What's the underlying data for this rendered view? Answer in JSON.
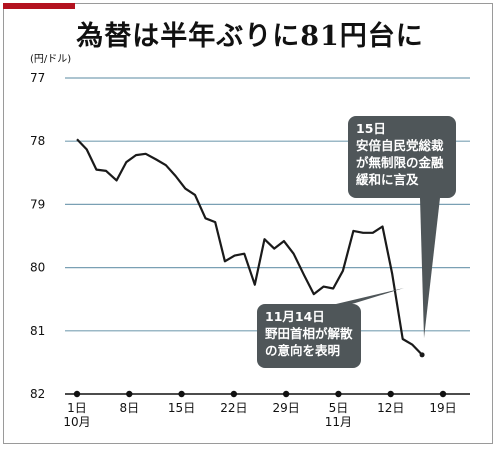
{
  "title": "為替は半年ぶりに81円台に",
  "colors": {
    "accent": "#b3121f",
    "line": "#1a1a1a",
    "grid": "#7aa0b4",
    "callout": "#4f5659"
  },
  "chart_data": {
    "type": "line",
    "title": "為替は半年ぶりに81円台に",
    "ylabel": "(円/ドル)",
    "xlabel": "",
    "y_inverted": true,
    "ylim": [
      77,
      82
    ],
    "yticks": [
      77,
      78,
      79,
      80,
      81,
      82
    ],
    "grid": true,
    "x_tick_labels": [
      {
        "day": 1,
        "label": "1日",
        "month_label": "10月"
      },
      {
        "day": 8,
        "label": "8日",
        "month_label": ""
      },
      {
        "day": 15,
        "label": "15日",
        "month_label": ""
      },
      {
        "day": 22,
        "label": "22日",
        "month_label": ""
      },
      {
        "day": 29,
        "label": "29日",
        "month_label": ""
      },
      {
        "day": 36,
        "label": "5日",
        "month_label": "11月"
      },
      {
        "day": 43,
        "label": "12日",
        "month_label": ""
      },
      {
        "day": 50,
        "label": "19日",
        "month_label": ""
      }
    ],
    "xlim": [
      0,
      52
    ],
    "series": [
      {
        "x": [
          1,
          2,
          3,
          4,
          5,
          6,
          7,
          8,
          9,
          10,
          11,
          12,
          13,
          14,
          15,
          16,
          17,
          18,
          19,
          20,
          21,
          22,
          23,
          24,
          25,
          26,
          27,
          28,
          29,
          30,
          31,
          32,
          33,
          34,
          35,
          36,
          37,
          38,
          39,
          40,
          41,
          42,
          43,
          44,
          45,
          46,
          47,
          48,
          49,
          50
        ],
        "y": [
          77.97,
          78.13,
          78.45,
          78.47,
          78.62,
          78.33,
          78.22,
          78.2,
          78.29,
          78.38,
          78.55,
          78.75,
          78.85,
          79.22,
          79.28,
          79.9,
          79.81,
          79.78,
          80.27,
          79.55,
          79.7,
          79.58,
          79.78,
          80.12,
          80.42,
          80.3,
          80.33,
          80.05,
          79.42,
          79.45,
          79.45,
          79.35,
          80.1,
          81.18,
          81.38,
          81.38,
          81.38,
          81.38,
          81.38,
          81.38,
          81.38,
          81.38,
          81.38,
          81.38,
          81.38,
          81.38,
          81.38,
          81.38,
          81.38,
          81.38
        ]
      }
    ],
    "plotted_points": [
      [
        1,
        77.97
      ],
      [
        2.3,
        78.13
      ],
      [
        3.6,
        78.45
      ],
      [
        4.9,
        78.47
      ],
      [
        6.3,
        78.62
      ],
      [
        7.6,
        78.33
      ],
      [
        8.9,
        78.22
      ],
      [
        10.2,
        78.2
      ],
      [
        11.6,
        78.29
      ],
      [
        12.9,
        78.38
      ],
      [
        14.2,
        78.55
      ],
      [
        15.5,
        78.75
      ],
      [
        16.8,
        78.85
      ],
      [
        18.2,
        79.22
      ],
      [
        19.5,
        79.28
      ],
      [
        20.8,
        79.9
      ],
      [
        22.1,
        79.81
      ],
      [
        23.4,
        79.78
      ],
      [
        24.8,
        80.27
      ],
      [
        26.1,
        79.55
      ],
      [
        27.4,
        79.7
      ],
      [
        28.7,
        79.58
      ],
      [
        30.0,
        79.78
      ],
      [
        31.4,
        80.12
      ],
      [
        32.7,
        80.42
      ],
      [
        34.0,
        80.3
      ],
      [
        35.3,
        80.33
      ],
      [
        36.6,
        80.05
      ],
      [
        38.0,
        79.42
      ],
      [
        39.3,
        79.45
      ],
      [
        40.6,
        79.45
      ],
      [
        41.9,
        79.35
      ],
      [
        43.2,
        80.1
      ],
      [
        44.6,
        81.13
      ],
      [
        45.9,
        81.22
      ],
      [
        47.2,
        81.38
      ]
    ],
    "annotations": [
      {
        "lines": [
          "11月14日",
          "野田首相が解散",
          "の意向を表明"
        ],
        "target": [
          43.2,
          80.12
        ]
      },
      {
        "lines": [
          "15日",
          "安倍自民党総裁",
          "が無制限の金融",
          "緩和に言及"
        ],
        "target": [
          44.6,
          81.1
        ]
      }
    ]
  }
}
